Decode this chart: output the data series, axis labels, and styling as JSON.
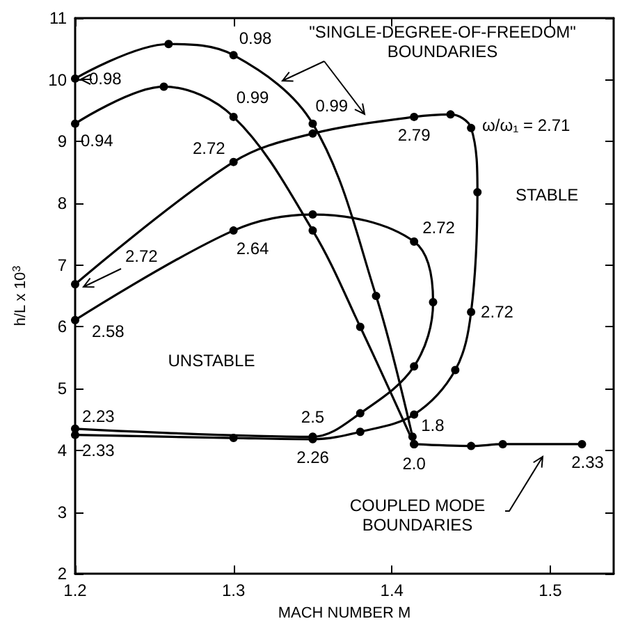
{
  "chart_data": {
    "type": "line",
    "xlabel": "MACH NUMBER M",
    "ylabel": "h/L x 10$^{3}$",
    "xlim": [
      1.2,
      1.54
    ],
    "xticks": [
      1.2,
      1.3,
      1.4,
      1.5
    ],
    "ylim": [
      2,
      11
    ],
    "yticks": [
      2,
      3,
      4,
      5,
      6,
      7,
      8,
      9,
      10,
      11
    ],
    "grid": false,
    "marker": "circle",
    "line_style": "solid",
    "series": [
      {
        "color": "#000000",
        "x": [
          1.2,
          1.259,
          1.3,
          1.35,
          1.39,
          1.413
        ],
        "values": [
          10.02,
          10.58,
          10.4,
          9.29,
          6.5,
          4.22
        ]
      },
      {
        "color": "#000000",
        "x": [
          1.2,
          1.256,
          1.3,
          1.35,
          1.38,
          1.414
        ],
        "values": [
          9.29,
          9.89,
          9.4,
          7.56,
          6.0,
          4.1
        ]
      },
      {
        "color": "#000000",
        "x": [
          1.2,
          1.3,
          1.35,
          1.414,
          1.437,
          1.45,
          1.454,
          1.45,
          1.44,
          1.414,
          1.38,
          1.35,
          1.3,
          1.2
        ],
        "values": [
          6.69,
          8.67,
          9.13,
          9.4,
          9.44,
          9.22,
          8.18,
          6.24,
          5.3,
          4.58,
          4.3,
          4.18,
          4.2,
          4.25
        ]
      },
      {
        "color": "#000000",
        "x": [
          1.2,
          1.3,
          1.35,
          1.414,
          1.426,
          1.414,
          1.38,
          1.35,
          1.2
        ],
        "values": [
          6.11,
          7.56,
          7.82,
          7.38,
          6.4,
          5.36,
          4.6,
          4.22,
          4.35
        ]
      },
      {
        "color": "#000000",
        "x": [
          1.414,
          1.45,
          1.47,
          1.52
        ],
        "values": [
          4.1,
          4.07,
          4.1,
          4.1
        ]
      }
    ],
    "annotations": [
      {
        "text": "0.98",
        "x": 1.3,
        "y": 10.4
      },
      {
        "text": "0.98",
        "x": 1.2,
        "y": 10.02
      },
      {
        "text": "0.94",
        "x": 1.2,
        "y": 9.29
      },
      {
        "text": "0.99",
        "x": 1.3,
        "y": 9.4
      },
      {
        "text": "0.99",
        "x": 1.35,
        "y": 9.29
      },
      {
        "text": "2.72",
        "x": 1.3,
        "y": 8.67
      },
      {
        "text": "2.79",
        "x": 1.414,
        "y": 9.4
      },
      {
        "text": "ω/ω₁ = 2.71",
        "x": 1.45,
        "y": 9.22
      },
      {
        "text": "2.72",
        "x": 1.414,
        "y": 7.38
      },
      {
        "text": "2.64",
        "x": 1.3,
        "y": 7.56
      },
      {
        "text": "2.72",
        "x": 1.2,
        "y": 6.69
      },
      {
        "text": "2.58",
        "x": 1.2,
        "y": 6.11
      },
      {
        "text": "2.72",
        "x": 1.45,
        "y": 6.24
      },
      {
        "text": "2.23",
        "x": 1.2,
        "y": 4.35
      },
      {
        "text": "2.33",
        "x": 1.2,
        "y": 4.25
      },
      {
        "text": "2.5",
        "x": 1.35,
        "y": 4.22
      },
      {
        "text": "2.26",
        "x": 1.35,
        "y": 4.18
      },
      {
        "text": "1.8",
        "x": 1.414,
        "y": 4.22
      },
      {
        "text": "2.0",
        "x": 1.414,
        "y": 4.1
      },
      {
        "text": "2.33",
        "x": 1.52,
        "y": 4.1
      },
      "\"SINGLE-DEGREE-OF-FREEDOM\"\nBOUNDARIES",
      "STABLE",
      "UNSTABLE",
      "COUPLED MODE\nBOUNDARIES"
    ]
  }
}
